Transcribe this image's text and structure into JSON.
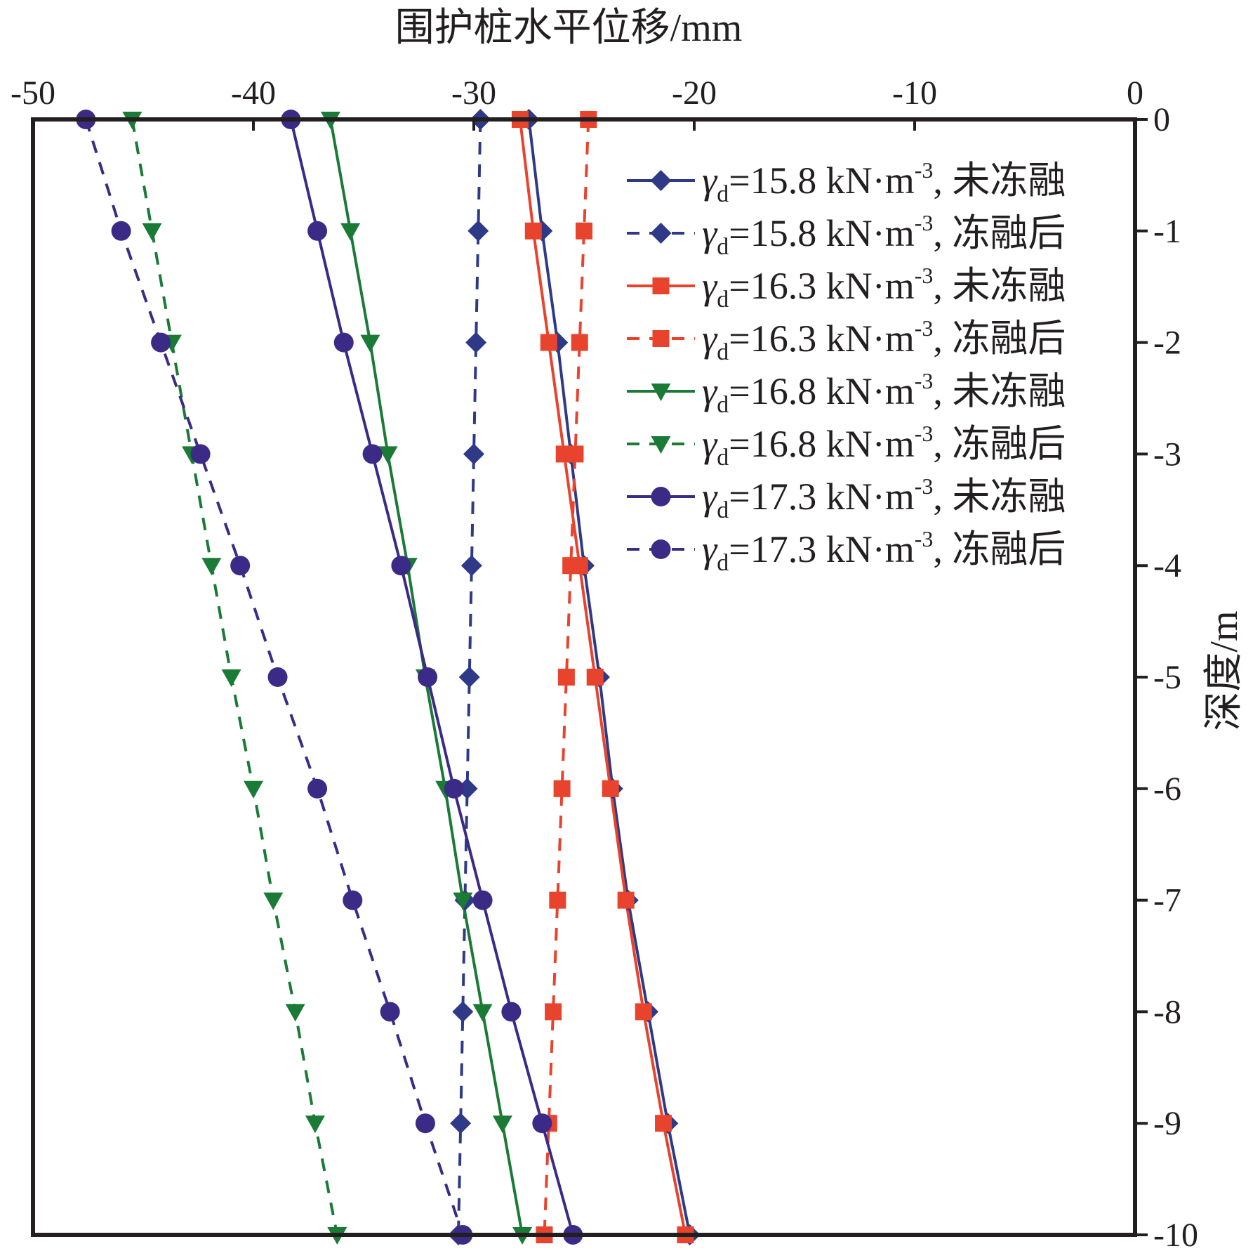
{
  "chart_data": {
    "type": "line",
    "xlabel": "围护桩水平位移/mm",
    "ylabel": "深度/m",
    "xlim": [
      -50,
      0
    ],
    "ylim": [
      -10,
      0
    ],
    "x_ticks": [
      "-50",
      "-40",
      "-30",
      "-20",
      "-10",
      "0"
    ],
    "y_ticks": [
      "0",
      "-1",
      "-2",
      "-3",
      "-4",
      "-5",
      "-6",
      "-7",
      "-8",
      "-9",
      "-10"
    ],
    "x_axis_position": "top",
    "y_axis_position": "right",
    "grid": false,
    "legend_position": "top-right",
    "depth": [
      0,
      -1,
      -2,
      -3,
      -4,
      -5,
      -6,
      -7,
      -8,
      -9,
      -10
    ],
    "series": [
      {
        "name": "γd=15.8 kN·m-3, 未冻融",
        "greek": "γ",
        "sub": "d",
        "value": "=15.8 kN·m",
        "sup": "-3",
        "tail": ", 未冻融",
        "color": "#2e3a87",
        "dash": "solid",
        "marker": "diamond",
        "values": [
          -27.5,
          -26.9,
          -26.2,
          -25.6,
          -25.0,
          -24.3,
          -23.7,
          -23.0,
          -22.1,
          -21.2,
          -20.2
        ]
      },
      {
        "name": "γd=15.8 kN·m-3, 冻融后",
        "greek": "γ",
        "sub": "d",
        "value": "=15.8 kN·m",
        "sup": "-3",
        "tail": ", 冻融后",
        "color": "#2e3a87",
        "dash": "dashed",
        "marker": "diamond",
        "values": [
          -29.7,
          -29.8,
          -29.9,
          -30.0,
          -30.1,
          -30.2,
          -30.3,
          -30.4,
          -30.5,
          -30.6,
          -30.7
        ]
      },
      {
        "name": "γd=16.3 kN·m-3, 未冻融",
        "greek": "γ",
        "sub": "d",
        "value": "=16.3 kN·m",
        "sup": "-3",
        "tail": ", 未冻融",
        "color": "#e8432d",
        "dash": "solid",
        "marker": "square",
        "values": [
          -27.9,
          -27.3,
          -26.6,
          -25.9,
          -25.2,
          -24.5,
          -23.8,
          -23.1,
          -22.3,
          -21.4,
          -20.4
        ]
      },
      {
        "name": "γd=16.3 kN·m-3, 冻融后",
        "greek": "γ",
        "sub": "d",
        "value": "=16.3 kN·m",
        "sup": "-3",
        "tail": ", 冻融后",
        "color": "#e8432d",
        "dash": "dashed",
        "marker": "square",
        "values": [
          -24.8,
          -25.0,
          -25.2,
          -25.4,
          -25.6,
          -25.8,
          -26.0,
          -26.2,
          -26.4,
          -26.6,
          -26.8
        ]
      },
      {
        "name": "γd=16.8 kN·m-3, 未冻融",
        "greek": "γ",
        "sub": "d",
        "value": "=16.8 kN·m",
        "sup": "-3",
        "tail": ", 未冻融",
        "color": "#1a7a36",
        "dash": "solid",
        "marker": "triangle-down",
        "values": [
          -36.5,
          -35.6,
          -34.7,
          -33.9,
          -33.0,
          -32.2,
          -31.3,
          -30.5,
          -29.6,
          -28.7,
          -27.8
        ]
      },
      {
        "name": "γd=16.8 kN·m-3, 冻融后",
        "greek": "γ",
        "sub": "d",
        "value": "=16.8 kN·m",
        "sup": "-3",
        "tail": ", 冻融后",
        "color": "#1a7a36",
        "dash": "dashed",
        "marker": "triangle-down",
        "values": [
          -45.5,
          -44.6,
          -43.7,
          -42.8,
          -41.9,
          -41.0,
          -40.0,
          -39.1,
          -38.1,
          -37.2,
          -36.2
        ]
      },
      {
        "name": "γd=17.3 kN·m-3, 未冻融",
        "greek": "γ",
        "sub": "d",
        "value": "=17.3 kN·m",
        "sup": "-3",
        "tail": ", 未冻融",
        "color": "#3b2a86",
        "dash": "solid",
        "marker": "circle",
        "values": [
          -38.3,
          -37.1,
          -35.9,
          -34.6,
          -33.3,
          -32.1,
          -30.9,
          -29.6,
          -28.3,
          -26.9,
          -25.5
        ]
      },
      {
        "name": "γd=17.3 kN·m-3, 冻融后",
        "greek": "γ",
        "sub": "d",
        "value": "=17.3 kN·m",
        "sup": "-3",
        "tail": ", 冻融后",
        "color": "#3b2a86",
        "dash": "dashed",
        "marker": "circle",
        "values": [
          -47.6,
          -46.0,
          -44.2,
          -42.4,
          -40.6,
          -38.9,
          -37.1,
          -35.5,
          -33.8,
          -32.2,
          -30.5
        ]
      }
    ]
  }
}
